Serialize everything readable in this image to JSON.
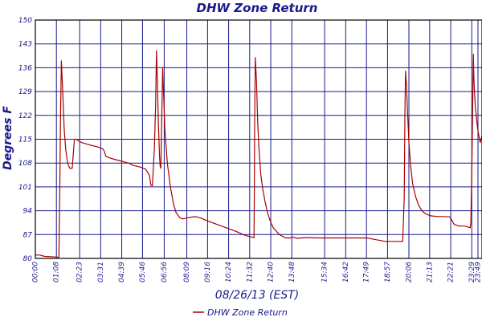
{
  "chart_data": {
    "type": "line",
    "title": "DHW Zone Return",
    "xlabel": "08/26/13 (EST)",
    "ylabel": "Degrees F",
    "ylim": [
      80,
      150
    ],
    "yticks": [
      80,
      87,
      94,
      101,
      108,
      115,
      122,
      129,
      136,
      143,
      150
    ],
    "xlim": [
      0,
      1442
    ],
    "xtick_labels": [
      "00:00",
      "01:08",
      "02:23",
      "03:31",
      "04:39",
      "05:46",
      "06:56",
      "08:09",
      "09:16",
      "10:24",
      "11:32",
      "12:40",
      "13:48",
      "15:34",
      "16:42",
      "17:49",
      "18:57",
      "20:06",
      "21:13",
      "22:21",
      "23:29",
      "23:49"
    ],
    "xtick_minutes": [
      0,
      68,
      143,
      211,
      279,
      346,
      416,
      489,
      556,
      624,
      692,
      760,
      828,
      934,
      1002,
      1069,
      1137,
      1206,
      1273,
      1341,
      1409,
      1429
    ],
    "grid": true,
    "legend_position": "bottom",
    "line_color": "#aa0000",
    "series": [
      {
        "name": "DHW Zone Return",
        "x": [
          0,
          15,
          30,
          50,
          70,
          76,
          79,
          81,
          84,
          88,
          93,
          98,
          104,
          111,
          119,
          126,
          132,
          140,
          150,
          170,
          190,
          210,
          220,
          228,
          240,
          260,
          280,
          300,
          320,
          340,
          356,
          368,
          373,
          378,
          384,
          388,
          391,
          394,
          397,
          401,
          403,
          405,
          411,
          418,
          426,
          436,
          446,
          454,
          466,
          476,
          496,
          516,
          536,
          556,
          586,
          616,
          646,
          676,
          701,
          706,
          707,
          708,
          710,
          714,
          718,
          722,
          728,
          734,
          741,
          748,
          758,
          768,
          778,
          788,
          798,
          808,
          818,
          823,
          825,
          835,
          845,
          870,
          920,
          970,
          1020,
          1070,
          1100,
          1130,
          1160,
          1186,
          1191,
          1193,
          1195,
          1198,
          1202,
          1206,
          1212,
          1218,
          1228,
          1238,
          1248,
          1258,
          1268,
          1278,
          1298,
          1318,
          1338,
          1346,
          1352,
          1368,
          1386,
          1404,
          1406,
          1409,
          1412,
          1414,
          1416,
          1420,
          1428,
          1436,
          1442
        ],
        "y": [
          81,
          81,
          80.6,
          80.5,
          80.4,
          80.3,
          101,
          119,
          138,
          130,
          118,
          112,
          108,
          106.5,
          106.5,
          115,
          115,
          114.5,
          114,
          113.5,
          113,
          112.5,
          112,
          110,
          109.5,
          109,
          108.5,
          108,
          107.2,
          106.8,
          106.2,
          104.5,
          101.5,
          101.3,
          112,
          124,
          141,
          132,
          120,
          110,
          107,
          106.5,
          136,
          118,
          108,
          101,
          96,
          93.5,
          92,
          91.6,
          92,
          92.3,
          91.8,
          91,
          90,
          89,
          88,
          86.8,
          86.2,
          86.1,
          100,
          120,
          139,
          132,
          120,
          112,
          104.5,
          100.5,
          97,
          94,
          91,
          89,
          88,
          87,
          86.5,
          86,
          86,
          86,
          86.1,
          86.2,
          85.9,
          86.1,
          86,
          86,
          86,
          86,
          85.5,
          85,
          85,
          85,
          98,
          122,
          135,
          131,
          122,
          114,
          107,
          102,
          98,
          95.5,
          94,
          93.2,
          92.8,
          92.5,
          92.3,
          92.3,
          92.2,
          91,
          90,
          89.5,
          89.5,
          89,
          90.5,
          105,
          125,
          140,
          132,
          125,
          118,
          114,
          116
        ]
      }
    ]
  }
}
